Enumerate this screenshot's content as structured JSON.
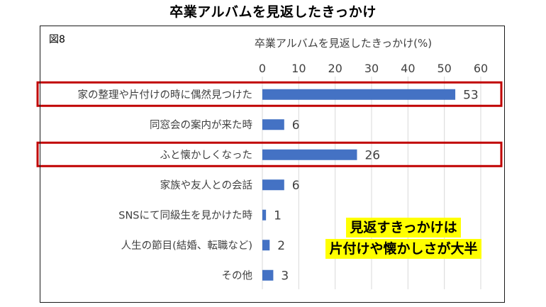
{
  "page_title": "卒業アルバムを見返したきっかけ",
  "figure_label": "図8",
  "callout": {
    "line1": "見返すきっかけは",
    "line2": "片付けや懐かしさが大半",
    "background_color": "#ffff00"
  },
  "colors": {
    "bar": "#4472c4",
    "highlight_border": "#c00000",
    "gridline": "#d9d9d9",
    "text": "#404040"
  },
  "chart_data": {
    "type": "bar",
    "orientation": "horizontal",
    "title": "卒業アルバムを見返したきっかけ(%)",
    "categories": [
      "家の整理や片付けの時に偶然見つけた",
      "同窓会の案内が来た時",
      "ふと懐かしくなった",
      "家族や友人との会話",
      "SNSにて同級生を見かけた時",
      "人生の節目(結婚、転職など)",
      "その他"
    ],
    "values": [
      53,
      6,
      26,
      6,
      1,
      2,
      3
    ],
    "value_labels": [
      "53",
      "6",
      "26",
      "6",
      "1",
      "2",
      "3"
    ],
    "xlim": [
      0,
      60
    ],
    "ticks": [
      "0",
      "10",
      "20",
      "30",
      "40",
      "50",
      "60"
    ],
    "axis_position": "top",
    "grid": true,
    "legend": "none",
    "highlighted_categories": [
      "家の整理や片付けの時に偶然見つけた",
      "ふと懐かしくなった"
    ]
  }
}
